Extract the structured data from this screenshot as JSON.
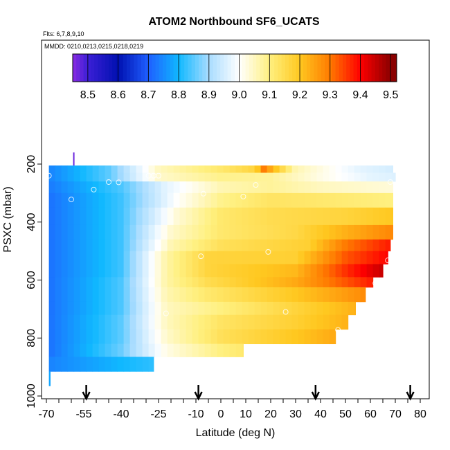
{
  "chart_data": {
    "type": "heatmap",
    "title": "ATOM2 Northbound SF6_UCATS",
    "flights_note": "Flts: 6,7,8,9,10",
    "dates_note": "MMDD: 0210,0213,0215,0218,0219",
    "xlabel": "Latitude (deg N)",
    "ylabel": "PSXC (mbar)",
    "xlim": [
      -70,
      85
    ],
    "ylim": [
      1000,
      140
    ],
    "y_reversed": true,
    "x_ticks": [
      -70,
      -55,
      -40,
      -25,
      -10,
      0,
      10,
      20,
      30,
      40,
      50,
      60,
      70,
      80
    ],
    "y_ticks": [
      200,
      400,
      600,
      800,
      1000
    ],
    "colorbar": {
      "ticks": [
        8.5,
        8.6,
        8.7,
        8.8,
        8.9,
        9.0,
        9.1,
        9.2,
        9.3,
        9.4,
        9.5
      ],
      "min": 8.45,
      "max": 9.52,
      "stops": [
        {
          "v": 8.45,
          "c": "#8a2be2"
        },
        {
          "v": 8.5,
          "c": "#3b1fd6"
        },
        {
          "v": 8.6,
          "c": "#0010b0"
        },
        {
          "v": 8.7,
          "c": "#1f5fff"
        },
        {
          "v": 8.8,
          "c": "#10b8ff"
        },
        {
          "v": 8.9,
          "c": "#a8dcff"
        },
        {
          "v": 9.0,
          "c": "#ffffff"
        },
        {
          "v": 9.1,
          "c": "#fff080"
        },
        {
          "v": 9.2,
          "c": "#ffc820"
        },
        {
          "v": 9.3,
          "c": "#ff7a00"
        },
        {
          "v": 9.4,
          "c": "#ff0000"
        },
        {
          "v": 9.5,
          "c": "#8a0000"
        }
      ]
    },
    "grid_rows": [
      {
        "p": [
          205,
          230
        ],
        "lat": [
          -69,
          69
        ],
        "anchors": [
          [
            -69,
            8.74
          ],
          [
            -45,
            8.85
          ],
          [
            -25,
            9.05
          ],
          [
            0,
            9.12
          ],
          [
            14,
            9.17
          ],
          [
            17,
            9.3
          ],
          [
            20,
            9.24
          ],
          [
            30,
            9.06
          ],
          [
            55,
            8.97
          ],
          [
            69,
            8.95
          ]
        ]
      },
      {
        "p": [
          230,
          260
        ],
        "lat": [
          -69,
          70
        ],
        "anchors": [
          [
            -69,
            8.74
          ],
          [
            -45,
            8.85
          ],
          [
            -25,
            9.04
          ],
          [
            0,
            9.09
          ],
          [
            20,
            9.08
          ],
          [
            40,
            9.02
          ],
          [
            60,
            8.97
          ],
          [
            70,
            8.96
          ]
        ]
      },
      {
        "p": [
          260,
          300
        ],
        "lat": [
          -69,
          69
        ],
        "anchors": [
          [
            -69,
            8.73
          ],
          [
            -40,
            8.84
          ],
          [
            -22,
            8.97
          ],
          [
            0,
            9.06
          ],
          [
            20,
            9.08
          ],
          [
            40,
            9.05
          ],
          [
            69,
            9.03
          ]
        ]
      },
      {
        "p": [
          300,
          350
        ],
        "lat": [
          -69,
          69
        ],
        "anchors": [
          [
            -69,
            8.72
          ],
          [
            -40,
            8.83
          ],
          [
            -18,
            9.0
          ],
          [
            0,
            9.09
          ],
          [
            20,
            9.13
          ],
          [
            40,
            9.12
          ],
          [
            69,
            9.1
          ]
        ]
      },
      {
        "p": [
          350,
          410
        ],
        "lat": [
          -69,
          69
        ],
        "anchors": [
          [
            -69,
            8.72
          ],
          [
            -40,
            8.83
          ],
          [
            -18,
            9.03
          ],
          [
            0,
            9.12
          ],
          [
            20,
            9.15
          ],
          [
            50,
            9.17
          ],
          [
            69,
            9.2
          ]
        ]
      },
      {
        "p": [
          410,
          460
        ],
        "lat": [
          -69,
          69
        ],
        "anchors": [
          [
            -69,
            8.72
          ],
          [
            -40,
            8.83
          ],
          [
            -20,
            9.04
          ],
          [
            0,
            9.12
          ],
          [
            30,
            9.16
          ],
          [
            50,
            9.23
          ],
          [
            67,
            9.28
          ]
        ]
      },
      {
        "p": [
          460,
          500
        ],
        "lat": [
          -69,
          68
        ],
        "anchors": [
          [
            -69,
            8.72
          ],
          [
            -40,
            8.83
          ],
          [
            -20,
            9.06
          ],
          [
            0,
            9.14
          ],
          [
            35,
            9.18
          ],
          [
            50,
            9.3
          ],
          [
            68,
            9.38
          ]
        ]
      },
      {
        "p": [
          500,
          545
        ],
        "lat": [
          -69,
          67
        ],
        "anchors": [
          [
            -69,
            8.72
          ],
          [
            -40,
            8.83
          ],
          [
            -22,
            9.07
          ],
          [
            -5,
            9.17
          ],
          [
            30,
            9.18
          ],
          [
            50,
            9.33
          ],
          [
            67,
            9.4
          ]
        ]
      },
      {
        "p": [
          545,
          590
        ],
        "lat": [
          -69,
          65
        ],
        "anchors": [
          [
            -69,
            8.72
          ],
          [
            -40,
            8.83
          ],
          [
            -22,
            9.07
          ],
          [
            -5,
            9.17
          ],
          [
            30,
            9.22
          ],
          [
            50,
            9.36
          ],
          [
            65,
            9.45
          ]
        ]
      },
      {
        "p": [
          590,
          625
        ],
        "lat": [
          -69,
          61
        ],
        "anchors": [
          [
            -69,
            8.72
          ],
          [
            -40,
            8.84
          ],
          [
            -22,
            9.07
          ],
          [
            -5,
            9.15
          ],
          [
            30,
            9.24
          ],
          [
            50,
            9.33
          ],
          [
            61,
            9.38
          ]
        ]
      },
      {
        "p": [
          625,
          675
        ],
        "lat": [
          -69,
          58
        ],
        "anchors": [
          [
            -69,
            8.72
          ],
          [
            -40,
            8.84
          ],
          [
            -22,
            9.06
          ],
          [
            -5,
            9.12
          ],
          [
            30,
            9.2
          ],
          [
            58,
            9.28
          ]
        ]
      },
      {
        "p": [
          675,
          720
        ],
        "lat": [
          -69,
          54
        ],
        "anchors": [
          [
            -69,
            8.72
          ],
          [
            -40,
            8.84
          ],
          [
            -22,
            9.05
          ],
          [
            0,
            9.1
          ],
          [
            30,
            9.17
          ],
          [
            54,
            9.23
          ]
        ]
      },
      {
        "p": [
          720,
          770
        ],
        "lat": [
          -69,
          51
        ],
        "anchors": [
          [
            -69,
            8.72
          ],
          [
            -40,
            8.85
          ],
          [
            -22,
            9.05
          ],
          [
            0,
            9.13
          ],
          [
            30,
            9.18
          ],
          [
            51,
            9.23
          ]
        ]
      },
      {
        "p": [
          770,
          820
        ],
        "lat": [
          -69,
          46
        ],
        "anchors": [
          [
            -69,
            8.72
          ],
          [
            -40,
            8.85
          ],
          [
            -22,
            9.04
          ],
          [
            0,
            9.14
          ],
          [
            30,
            9.2
          ],
          [
            46,
            9.24
          ]
        ]
      },
      {
        "p": [
          820,
          865
        ],
        "lat": [
          -69,
          9
        ],
        "anchors": [
          [
            -69,
            8.72
          ],
          [
            -40,
            8.86
          ],
          [
            -22,
            9.02
          ],
          [
            0,
            9.1
          ],
          [
            9,
            9.12
          ]
        ]
      },
      {
        "p": [
          865,
          915
        ],
        "lat": [
          -69,
          -27
        ],
        "anchors": [
          [
            -69,
            8.74
          ],
          [
            -40,
            8.8
          ],
          [
            -27,
            8.82
          ]
        ]
      },
      {
        "p": [
          915,
          965
        ],
        "lat": [
          -69,
          -68.5
        ],
        "anchors": [
          [
            -69,
            8.78
          ],
          [
            -68.5,
            8.78
          ]
        ]
      }
    ],
    "top_spike": {
      "lat": -59,
      "p": [
        160,
        205
      ],
      "value": 8.47
    },
    "circles": [
      [
        -69,
        240
      ],
      [
        -60,
        322
      ],
      [
        -51,
        288
      ],
      [
        -45,
        262
      ],
      [
        -41,
        263
      ],
      [
        -29,
        240
      ],
      [
        -27,
        240
      ],
      [
        -25,
        240
      ],
      [
        -7,
        302
      ],
      [
        9,
        312
      ],
      [
        14,
        272
      ],
      [
        -8,
        518
      ],
      [
        19,
        503
      ],
      [
        -22,
        715
      ],
      [
        26,
        710
      ],
      [
        47,
        772
      ],
      [
        56,
        704
      ],
      [
        62,
        611
      ],
      [
        67,
        532
      ],
      [
        68,
        262
      ]
    ],
    "arrow_lats": [
      -54,
      -9,
      38,
      76
    ]
  }
}
